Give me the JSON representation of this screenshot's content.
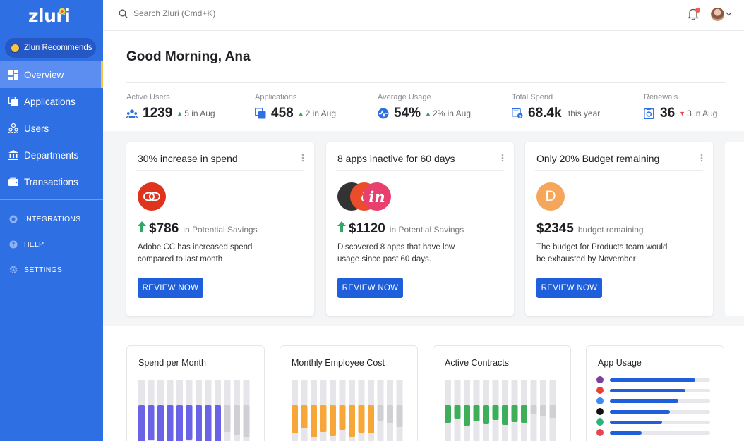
{
  "sidebar": {
    "logo": "zluri",
    "recommends": "Zluri Recommends",
    "items": [
      {
        "label": "Overview",
        "icon": "grid-icon"
      },
      {
        "label": "Applications",
        "icon": "applications-icon"
      },
      {
        "label": "Users",
        "icon": "users-icon"
      },
      {
        "label": "Departments",
        "icon": "bank-icon"
      },
      {
        "label": "Transactions",
        "icon": "wallet-icon"
      }
    ],
    "secondary": [
      {
        "label": "INTEGRATIONS",
        "icon": "integrations-icon"
      },
      {
        "label": "HELP",
        "icon": "help-icon"
      },
      {
        "label": "SETTINGS",
        "icon": "gear-icon"
      }
    ]
  },
  "topbar": {
    "search_placeholder": "Search Zluri (Cmd+K)"
  },
  "greeting": "Good Morning, Ana",
  "stats": [
    {
      "label": "Active Users",
      "value": "1239",
      "delta": "5",
      "suffix": "in Aug",
      "trend": "up"
    },
    {
      "label": "Applications",
      "value": "458",
      "delta": "2",
      "suffix": "in Aug",
      "trend": "up"
    },
    {
      "label": "Average Usage",
      "value": "54%",
      "delta": "2%",
      "suffix": "in Aug",
      "trend": "up"
    },
    {
      "label": "Total Spend",
      "value": "68.4k",
      "delta": "",
      "suffix": "this year",
      "trend": "none"
    },
    {
      "label": "Renewals",
      "value": "36",
      "delta": "3",
      "suffix": "in Aug",
      "trend": "down"
    }
  ],
  "cards": [
    {
      "title": "30% increase in spend",
      "amount": "$786",
      "amount_label": "in Potential Savings",
      "desc": "Adobe CC has increased spend compared to last month",
      "button": "REVIEW NOW"
    },
    {
      "title": "8 apps inactive for 60 days",
      "amount": "$1120",
      "amount_label": "in Potential Savings",
      "desc": "Discovered 8 apps that have low usage since past 60 days.",
      "button": "REVIEW NOW",
      "logo_letter_1": "∂",
      "logo_letter_2": "in"
    },
    {
      "title": "Only 20% Budget remaining",
      "amount": "$2345",
      "amount_label": "budget remaining",
      "desc": "The budget for Products team would be exhausted by November",
      "button": "REVIEW NOW",
      "logo_letter": "D"
    }
  ],
  "charts": [
    {
      "title": "Spend per Month",
      "color": "#6a63e6",
      "values": [
        0.59,
        0.5,
        0.65,
        0.54,
        0.62,
        0.49,
        0.61,
        0.55,
        0.58,
        0.38,
        0.42,
        0.46
      ]
    },
    {
      "title": "Monthly Employee Cost",
      "color": "#f7a63a",
      "values": [
        0.4,
        0.33,
        0.46,
        0.38,
        0.44,
        0.35,
        0.45,
        0.39,
        0.4,
        0.22,
        0.26,
        0.31
      ]
    },
    {
      "title": "Active Contracts",
      "color": "#3fae5a",
      "values": [
        0.25,
        0.2,
        0.29,
        0.23,
        0.27,
        0.21,
        0.28,
        0.24,
        0.25,
        0.13,
        0.16,
        0.19
      ]
    }
  ],
  "app_usage": {
    "title": "App Usage",
    "apps": [
      {
        "icon": "app-icon-1",
        "color": "#7b3fa0",
        "value": 0.85
      },
      {
        "icon": "google-icon",
        "color": "#e94235",
        "value": 0.75
      },
      {
        "icon": "app-icon-3",
        "color": "#3b8cf2",
        "value": 0.68
      },
      {
        "icon": "app-icon-4",
        "color": "#111111",
        "value": 0.6
      },
      {
        "icon": "app-icon-5",
        "color": "#2fb37e",
        "value": 0.52
      },
      {
        "icon": "app-icon-6",
        "color": "#e5484d",
        "value": 0.32
      }
    ]
  }
}
